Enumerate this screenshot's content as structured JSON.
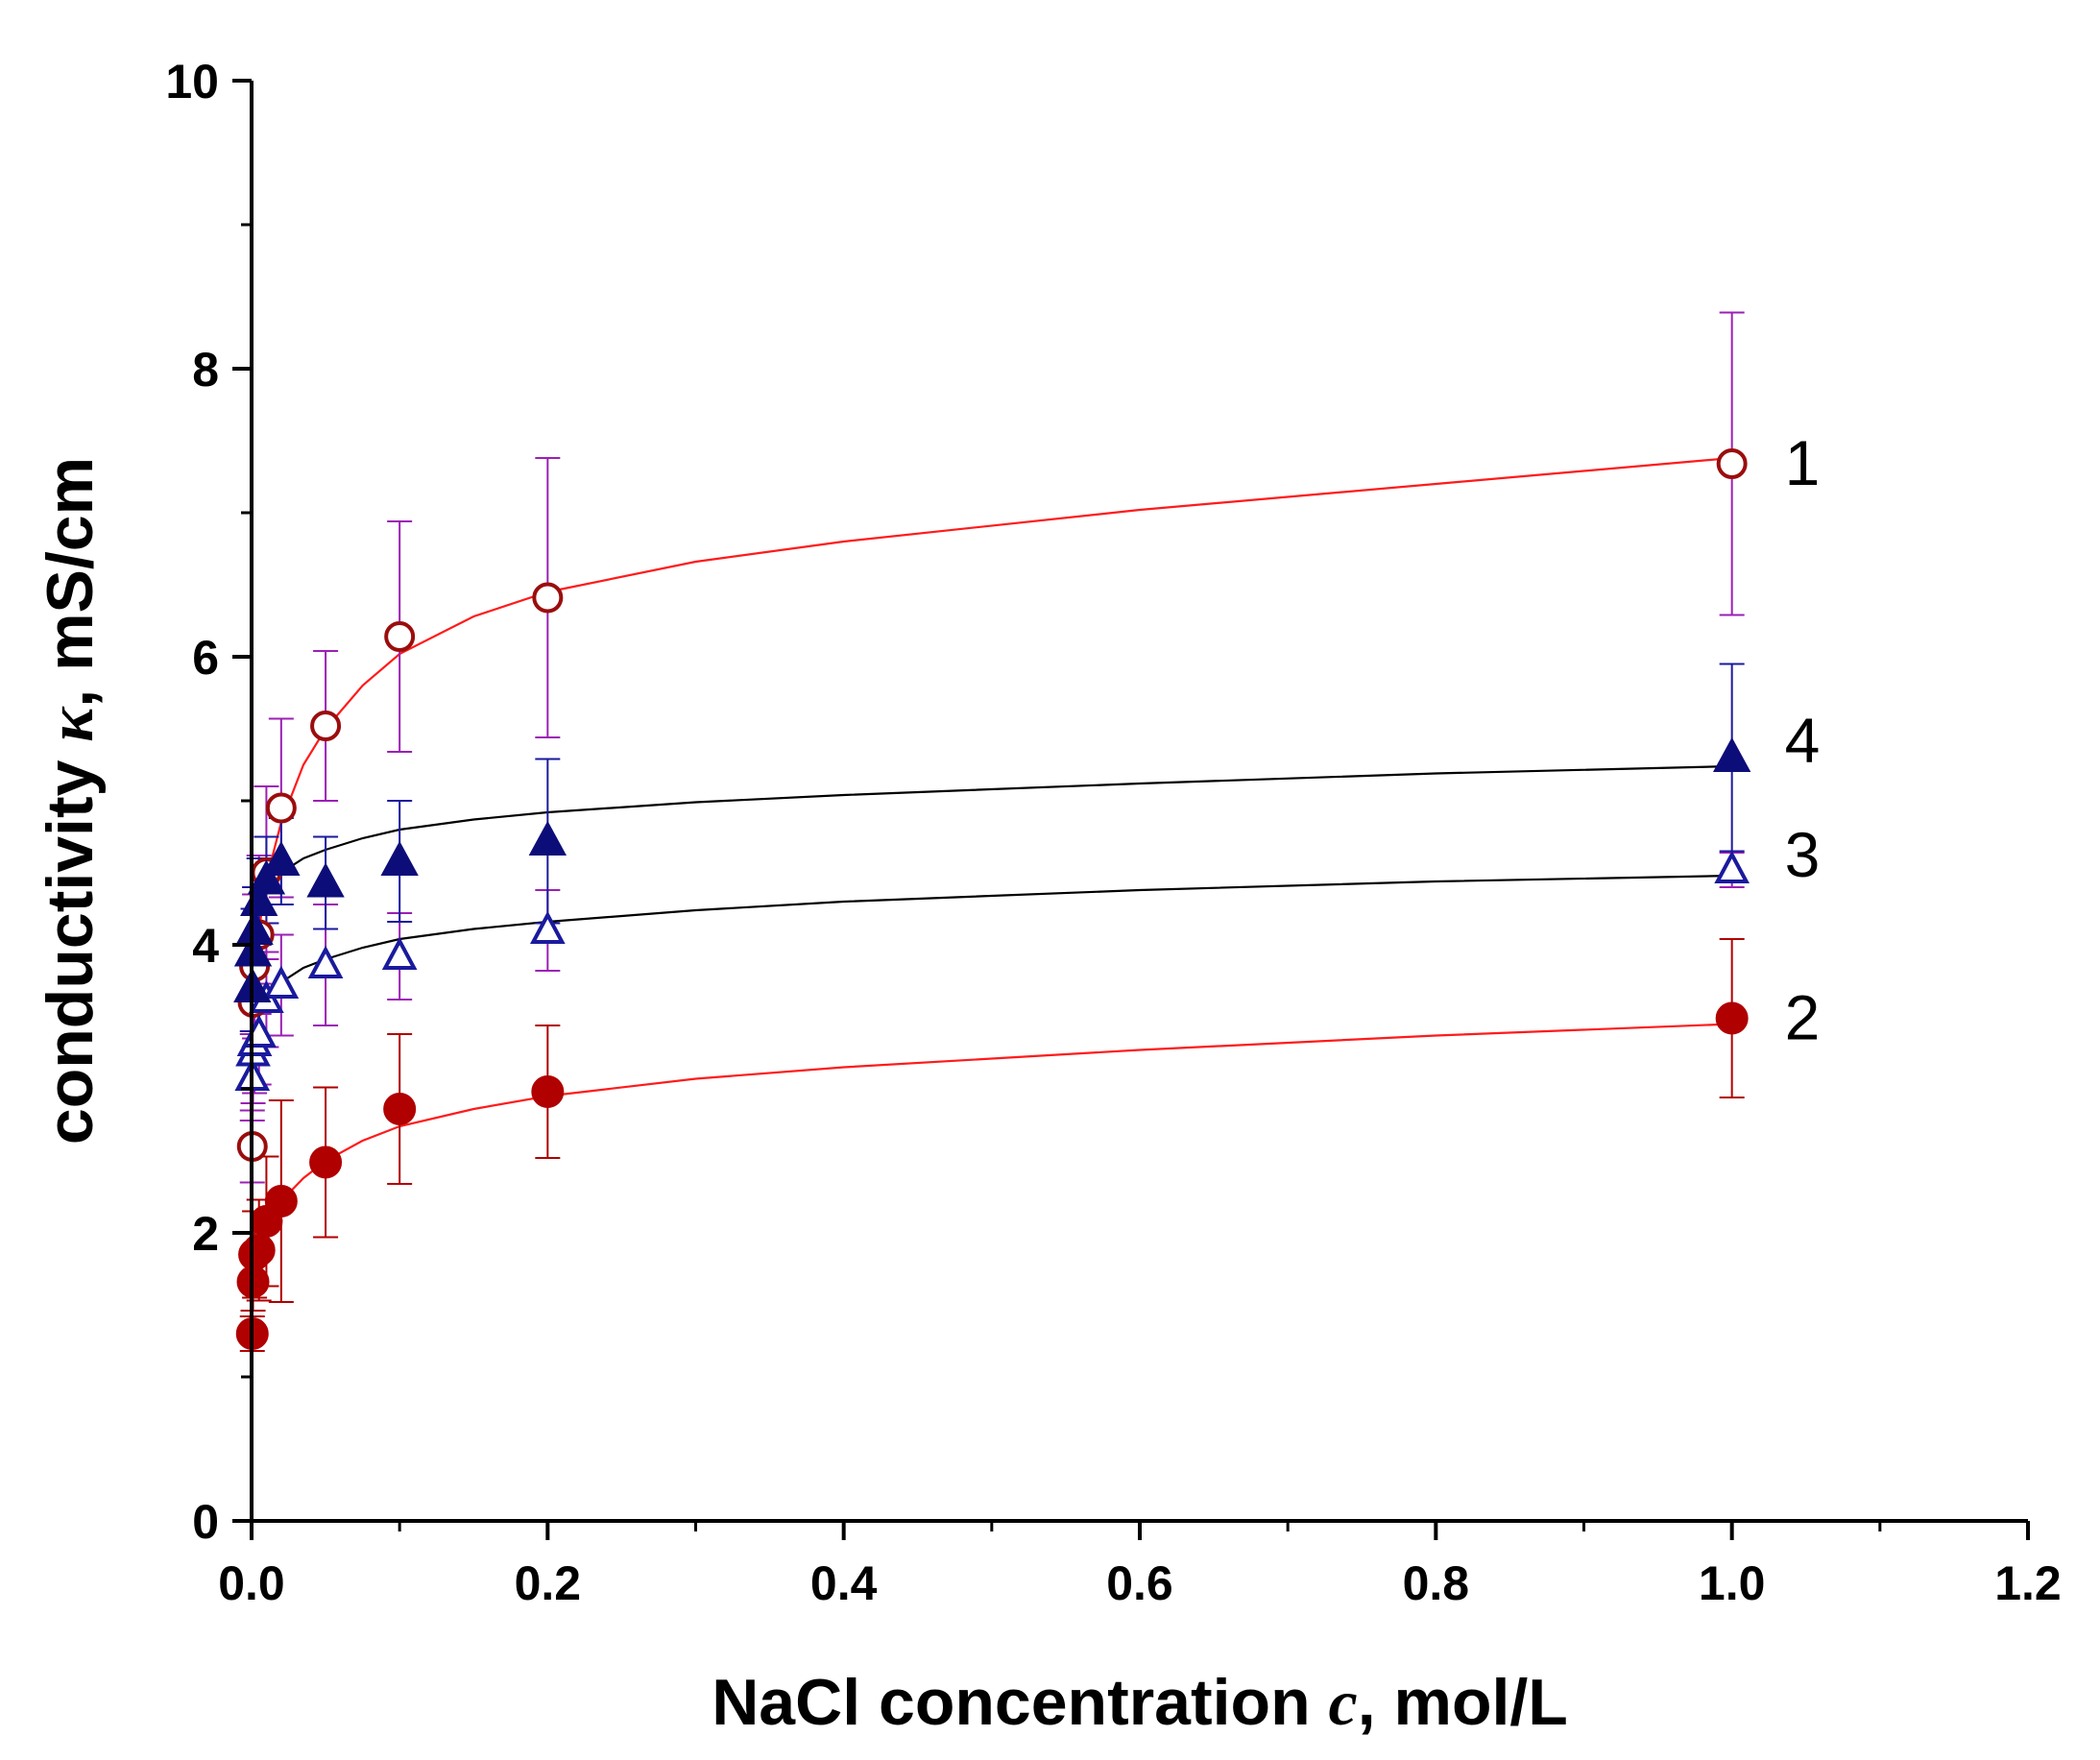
{
  "chart_data": {
    "type": "scatter",
    "title": "",
    "xlabel_pre": "NaCl concentration ",
    "xlabel_var": "c",
    "xlabel_post": ", mol/L",
    "ylabel_pre": "conductivity ",
    "ylabel_var": "κ",
    "ylabel_post": ", mS/cm",
    "xlim": [
      0,
      1.2
    ],
    "ylim": [
      0,
      10
    ],
    "xticks": [
      0,
      0.2,
      0.4,
      0.6,
      0.8,
      1.0,
      1.2
    ],
    "xtick_labels": [
      "0.0",
      "0.2",
      "0.4",
      "0.6",
      "0.8",
      "1.0",
      "1.2"
    ],
    "yticks": [
      0,
      2,
      4,
      6,
      8,
      10
    ],
    "ytick_labels": [
      "0",
      "2",
      "4",
      "6",
      "8",
      "10"
    ],
    "grid": false,
    "series": [
      {
        "name": "1",
        "marker": "open-circle",
        "color": "#9b0d0d",
        "error_color": "#9b1fb5",
        "fit_color": "#ff1a1a",
        "x": [
          0.0005,
          0.001,
          0.002,
          0.005,
          0.01,
          0.02,
          0.05,
          0.1,
          0.2,
          1.0
        ],
        "y": [
          2.6,
          3.6,
          3.85,
          4.07,
          4.5,
          4.95,
          5.52,
          6.14,
          6.41,
          7.34
        ],
        "err": [
          0.25,
          0.4,
          0.5,
          0.55,
          0.6,
          0.62,
          0.52,
          0.8,
          0.97,
          1.05
        ],
        "fit": [
          [
            0.0005,
            2.75
          ],
          [
            0.002,
            3.7
          ],
          [
            0.005,
            4.1
          ],
          [
            0.01,
            4.45
          ],
          [
            0.02,
            4.85
          ],
          [
            0.035,
            5.25
          ],
          [
            0.05,
            5.5
          ],
          [
            0.075,
            5.8
          ],
          [
            0.1,
            6.02
          ],
          [
            0.15,
            6.28
          ],
          [
            0.2,
            6.45
          ],
          [
            0.3,
            6.66
          ],
          [
            0.4,
            6.8
          ],
          [
            0.6,
            7.02
          ],
          [
            0.8,
            7.2
          ],
          [
            1.0,
            7.38
          ]
        ]
      },
      {
        "name": "2",
        "marker": "filled-circle",
        "color": "#b00000",
        "error_color": "#b00000",
        "fit_color": "#ff1a1a",
        "x": [
          0.0005,
          0.001,
          0.002,
          0.005,
          0.01,
          0.02,
          0.05,
          0.1,
          0.2,
          1.0
        ],
        "y": [
          1.3,
          1.66,
          1.85,
          1.88,
          2.08,
          2.22,
          2.49,
          2.86,
          2.98,
          3.49
        ],
        "err": [
          0.12,
          0.2,
          0.3,
          0.35,
          0.45,
          0.7,
          0.52,
          0.52,
          0.46,
          0.55
        ],
        "fit": [
          [
            0.0005,
            1.62
          ],
          [
            0.002,
            1.82
          ],
          [
            0.005,
            1.97
          ],
          [
            0.01,
            2.08
          ],
          [
            0.02,
            2.22
          ],
          [
            0.035,
            2.38
          ],
          [
            0.05,
            2.5
          ],
          [
            0.075,
            2.64
          ],
          [
            0.1,
            2.74
          ],
          [
            0.15,
            2.86
          ],
          [
            0.2,
            2.95
          ],
          [
            0.3,
            3.07
          ],
          [
            0.4,
            3.15
          ],
          [
            0.6,
            3.27
          ],
          [
            0.8,
            3.37
          ],
          [
            1.0,
            3.45
          ]
        ]
      },
      {
        "name": "3",
        "marker": "open-triangle",
        "color": "#1a1a9e",
        "error_color": "#9b1fb5",
        "fit_color": "#000000",
        "x": [
          0.0005,
          0.001,
          0.002,
          0.005,
          0.01,
          0.02,
          0.05,
          0.1,
          0.2,
          1.0
        ],
        "y": [
          3.08,
          3.25,
          3.32,
          3.38,
          3.62,
          3.72,
          3.86,
          3.92,
          4.1,
          4.52
        ],
        "err": [
          0.3,
          0.35,
          0.35,
          0.35,
          0.33,
          0.35,
          0.42,
          0.3,
          0.28,
          0.12
        ],
        "fit": [
          [
            0.0005,
            3.1
          ],
          [
            0.002,
            3.32
          ],
          [
            0.005,
            3.5
          ],
          [
            0.01,
            3.62
          ],
          [
            0.02,
            3.74
          ],
          [
            0.035,
            3.84
          ],
          [
            0.05,
            3.9
          ],
          [
            0.075,
            3.98
          ],
          [
            0.1,
            4.04
          ],
          [
            0.15,
            4.11
          ],
          [
            0.2,
            4.16
          ],
          [
            0.3,
            4.24
          ],
          [
            0.4,
            4.3
          ],
          [
            0.6,
            4.38
          ],
          [
            0.8,
            4.44
          ],
          [
            1.0,
            4.48
          ]
        ]
      },
      {
        "name": "4",
        "marker": "filled-triangle",
        "color": "#0d0d7a",
        "error_color": "#1a1a9e",
        "fit_color": "#000000",
        "x": [
          0.0005,
          0.001,
          0.002,
          0.005,
          0.01,
          0.02,
          0.05,
          0.1,
          0.2,
          1.0
        ],
        "y": [
          3.7,
          3.95,
          4.1,
          4.3,
          4.45,
          4.58,
          4.43,
          4.58,
          4.72,
          5.3
        ],
        "err": [
          0.3,
          0.3,
          0.3,
          0.3,
          0.3,
          0.3,
          0.32,
          0.42,
          0.57,
          0.65
        ],
        "fit": [
          [
            0.0005,
            3.9
          ],
          [
            0.002,
            4.15
          ],
          [
            0.005,
            4.3
          ],
          [
            0.01,
            4.4
          ],
          [
            0.02,
            4.5
          ],
          [
            0.035,
            4.6
          ],
          [
            0.05,
            4.66
          ],
          [
            0.075,
            4.74
          ],
          [
            0.1,
            4.8
          ],
          [
            0.15,
            4.87
          ],
          [
            0.2,
            4.92
          ],
          [
            0.3,
            4.99
          ],
          [
            0.4,
            5.04
          ],
          [
            0.6,
            5.12
          ],
          [
            0.8,
            5.19
          ],
          [
            1.0,
            5.24
          ]
        ]
      }
    ]
  }
}
